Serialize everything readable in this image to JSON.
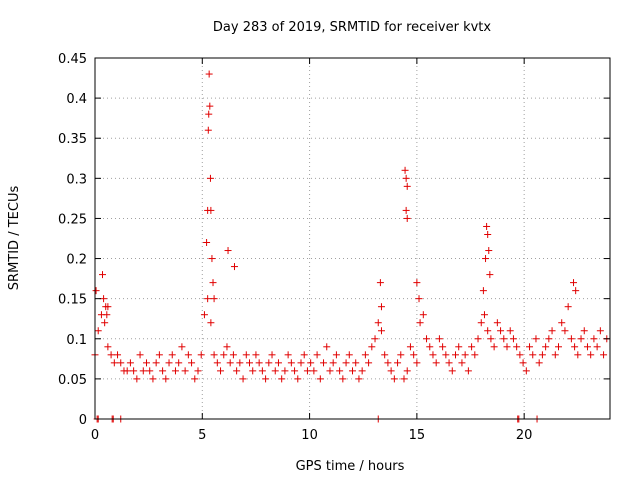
{
  "chart_data": {
    "type": "scatter",
    "title": "Day 283 of 2019, SRMTID for receiver kvtx",
    "xlabel": "GPS time / hours",
    "ylabel": "SRMTID / TECUs",
    "xlim": [
      0,
      24
    ],
    "ylim": [
      0,
      0.45
    ],
    "xticks": [
      0,
      5,
      10,
      15,
      20
    ],
    "xtick_labels": [
      "0",
      "5",
      "10",
      "15",
      "20"
    ],
    "yticks": [
      0,
      0.05,
      0.1,
      0.15,
      0.2,
      0.25,
      0.3,
      0.35,
      0.4,
      0.45
    ],
    "ytick_labels": [
      "0",
      "0.05",
      "0.1",
      "0.15",
      "0.2",
      "0.25",
      "0.3",
      "0.35",
      "0.4",
      "0.45"
    ],
    "grid": true,
    "marker": "+",
    "color": "#e00000",
    "series": [
      {
        "name": "SRMTID",
        "x": [
          0.0,
          0.15,
          0.3,
          0.45,
          0.6,
          0.75,
          0.9,
          1.05,
          1.2,
          1.35,
          1.5,
          1.65,
          1.8,
          1.95,
          2.1,
          2.25,
          2.4,
          2.55,
          2.7,
          2.85,
          3.0,
          3.15,
          3.3,
          3.45,
          3.6,
          3.75,
          3.9,
          4.05,
          4.2,
          4.35,
          4.5,
          4.65,
          4.8,
          4.95,
          5.1,
          5.25,
          5.4,
          5.55,
          5.7,
          5.85,
          6.0,
          6.15,
          6.3,
          6.45,
          6.6,
          6.75,
          6.9,
          7.05,
          7.2,
          7.35,
          7.5,
          7.65,
          7.8,
          7.95,
          8.1,
          8.25,
          8.4,
          8.55,
          8.7,
          8.85,
          9.0,
          9.15,
          9.3,
          9.45,
          9.6,
          9.75,
          9.9,
          10.05,
          10.2,
          10.35,
          10.5,
          10.65,
          10.8,
          10.95,
          11.1,
          11.25,
          11.4,
          11.55,
          11.7,
          11.85,
          12.0,
          12.15,
          12.3,
          12.45,
          12.6,
          12.75,
          12.9,
          13.05,
          13.2,
          13.35,
          13.5,
          13.65,
          13.8,
          13.95,
          14.1,
          14.25,
          14.4,
          14.55,
          14.7,
          14.85,
          15.0,
          15.15,
          15.3,
          15.45,
          15.6,
          15.75,
          15.9,
          16.05,
          16.2,
          16.35,
          16.5,
          16.65,
          16.8,
          16.95,
          17.1,
          17.25,
          17.4,
          17.55,
          17.7,
          17.85,
          18.0,
          18.15,
          18.3,
          18.45,
          18.6,
          18.75,
          18.9,
          19.05,
          19.2,
          19.35,
          19.5,
          19.65,
          19.8,
          19.95,
          20.1,
          20.25,
          20.4,
          20.55,
          20.7,
          20.85,
          21.0,
          21.15,
          21.3,
          21.45,
          21.6,
          21.75,
          21.9,
          22.05,
          22.2,
          22.35,
          22.5,
          22.65,
          22.8,
          22.95,
          23.1,
          23.25,
          23.4,
          23.55,
          23.7,
          23.85,
          0.05,
          0.35,
          0.4,
          0.5,
          0.55,
          0.6,
          5.2,
          5.25,
          5.28,
          5.3,
          5.32,
          5.35,
          5.38,
          5.4,
          5.45,
          5.5,
          5.55,
          6.2,
          6.5,
          14.45,
          14.5,
          14.55,
          14.5,
          14.55,
          18.1,
          18.2,
          18.25,
          18.3,
          18.35,
          18.4,
          13.3,
          13.35,
          15.0,
          15.1,
          22.3,
          22.4,
          0.1,
          0.15,
          0.8,
          0.85,
          1.2,
          13.2,
          19.7,
          19.75,
          20.6
        ],
        "y": [
          0.08,
          0.11,
          0.13,
          0.12,
          0.09,
          0.08,
          0.07,
          0.08,
          0.07,
          0.06,
          0.06,
          0.07,
          0.06,
          0.05,
          0.08,
          0.06,
          0.07,
          0.06,
          0.05,
          0.07,
          0.08,
          0.06,
          0.05,
          0.07,
          0.08,
          0.06,
          0.07,
          0.09,
          0.06,
          0.08,
          0.07,
          0.05,
          0.06,
          0.08,
          0.13,
          0.15,
          0.12,
          0.08,
          0.07,
          0.06,
          0.08,
          0.09,
          0.07,
          0.08,
          0.06,
          0.07,
          0.05,
          0.08,
          0.07,
          0.06,
          0.08,
          0.07,
          0.06,
          0.05,
          0.07,
          0.08,
          0.06,
          0.07,
          0.05,
          0.06,
          0.08,
          0.07,
          0.06,
          0.05,
          0.07,
          0.08,
          0.06,
          0.07,
          0.06,
          0.08,
          0.05,
          0.07,
          0.09,
          0.06,
          0.07,
          0.08,
          0.06,
          0.05,
          0.07,
          0.08,
          0.06,
          0.07,
          0.05,
          0.06,
          0.08,
          0.07,
          0.09,
          0.1,
          0.12,
          0.11,
          0.08,
          0.07,
          0.06,
          0.05,
          0.07,
          0.08,
          0.05,
          0.06,
          0.09,
          0.08,
          0.07,
          0.12,
          0.13,
          0.1,
          0.09,
          0.08,
          0.07,
          0.1,
          0.09,
          0.08,
          0.07,
          0.06,
          0.08,
          0.09,
          0.07,
          0.08,
          0.06,
          0.09,
          0.08,
          0.1,
          0.12,
          0.13,
          0.11,
          0.1,
          0.09,
          0.12,
          0.11,
          0.1,
          0.09,
          0.11,
          0.1,
          0.09,
          0.08,
          0.07,
          0.06,
          0.09,
          0.08,
          0.1,
          0.07,
          0.08,
          0.09,
          0.1,
          0.11,
          0.08,
          0.09,
          0.12,
          0.11,
          0.14,
          0.1,
          0.09,
          0.08,
          0.1,
          0.11,
          0.09,
          0.08,
          0.1,
          0.09,
          0.11,
          0.08,
          0.1,
          0.16,
          0.18,
          0.15,
          0.14,
          0.13,
          0.14,
          0.22,
          0.26,
          0.36,
          0.38,
          0.43,
          0.39,
          0.3,
          0.26,
          0.2,
          0.17,
          0.15,
          0.21,
          0.19,
          0.31,
          0.3,
          0.29,
          0.26,
          0.25,
          0.16,
          0.2,
          0.24,
          0.23,
          0.21,
          0.18,
          0.17,
          0.14,
          0.17,
          0.15,
          0.17,
          0.16,
          0.0,
          0.0,
          0.0,
          0.0,
          0.0,
          0.0,
          0.0,
          0.0,
          0.0
        ]
      }
    ]
  }
}
